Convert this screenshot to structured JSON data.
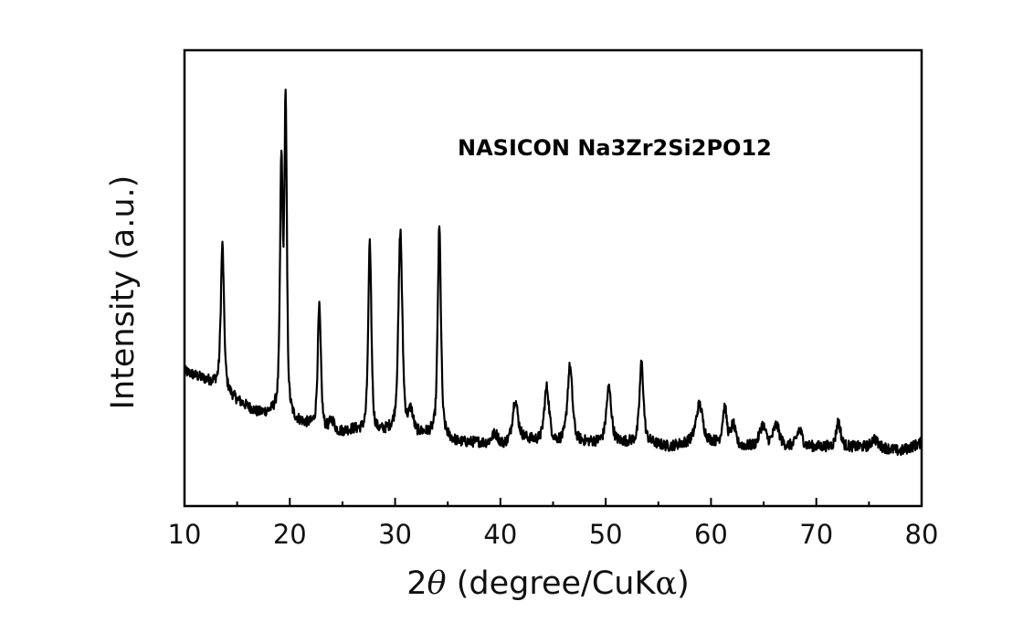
{
  "chart_data": {
    "type": "line",
    "title": "NASICON Na3Zr2Si2PO12",
    "xlabel": "2θ (degree/CuKα)",
    "xlabel_parts": {
      "prefix": "2",
      "theta": "θ",
      "middle": " (degree/CuK",
      "alpha": "α",
      "suffix": ")"
    },
    "ylabel": "Intensity (a.u.)",
    "xlim": [
      10,
      80
    ],
    "x_ticks": [
      10,
      20,
      30,
      40,
      50,
      60,
      70,
      80
    ],
    "x_tick_labels": [
      "10",
      "20",
      "30",
      "40",
      "50",
      "60",
      "70",
      "80"
    ],
    "x_minor_ticks": [
      15,
      25,
      35,
      45,
      55,
      65,
      75
    ],
    "y_ticks": [],
    "ylim_relative": [
      0,
      100
    ],
    "grid": false,
    "legend": null,
    "line_color": "#000000",
    "series": [
      {
        "name": "NASICON Na3Zr2Si2PO12",
        "baseline": [
          [
            10,
            29
          ],
          [
            12,
            27
          ],
          [
            13,
            26
          ],
          [
            15,
            22
          ],
          [
            17,
            19
          ],
          [
            18.8,
            19
          ],
          [
            20.5,
            17
          ],
          [
            22,
            16
          ],
          [
            24,
            14
          ],
          [
            26,
            15
          ],
          [
            28,
            14
          ],
          [
            30,
            15
          ],
          [
            32,
            14
          ],
          [
            34,
            14
          ],
          [
            36,
            12
          ],
          [
            38,
            12
          ],
          [
            40,
            11
          ],
          [
            42,
            13
          ],
          [
            44,
            12
          ],
          [
            46,
            12
          ],
          [
            48,
            12
          ],
          [
            50,
            12
          ],
          [
            52,
            12
          ],
          [
            54,
            12
          ],
          [
            56,
            11
          ],
          [
            58,
            12
          ],
          [
            60,
            12
          ],
          [
            62,
            11
          ],
          [
            64,
            11
          ],
          [
            66,
            11
          ],
          [
            68,
            11
          ],
          [
            70,
            11
          ],
          [
            72,
            11
          ],
          [
            74,
            11
          ],
          [
            76,
            11
          ],
          [
            78,
            10
          ],
          [
            80,
            12
          ]
        ],
        "peaks": [
          {
            "two_theta": 13.6,
            "intensity": 59,
            "width": 0.18
          },
          {
            "two_theta": 19.2,
            "intensity": 77,
            "width": 0.15
          },
          {
            "two_theta": 19.6,
            "intensity": 92,
            "width": 0.14
          },
          {
            "two_theta": 22.8,
            "intensity": 44,
            "width": 0.18
          },
          {
            "two_theta": 24.0,
            "intensity": 17,
            "width": 0.3
          },
          {
            "two_theta": 27.6,
            "intensity": 59,
            "width": 0.18
          },
          {
            "two_theta": 30.5,
            "intensity": 62,
            "width": 0.22
          },
          {
            "two_theta": 31.5,
            "intensity": 19,
            "width": 0.25
          },
          {
            "two_theta": 34.2,
            "intensity": 63,
            "width": 0.18
          },
          {
            "two_theta": 39.5,
            "intensity": 14,
            "width": 0.4
          },
          {
            "two_theta": 41.4,
            "intensity": 22,
            "width": 0.3
          },
          {
            "two_theta": 44.4,
            "intensity": 25,
            "width": 0.28
          },
          {
            "two_theta": 46.6,
            "intensity": 30,
            "width": 0.28
          },
          {
            "two_theta": 50.3,
            "intensity": 25,
            "width": 0.28
          },
          {
            "two_theta": 53.4,
            "intensity": 31,
            "width": 0.22
          },
          {
            "two_theta": 58.9,
            "intensity": 21,
            "width": 0.38
          },
          {
            "two_theta": 61.3,
            "intensity": 20,
            "width": 0.25
          },
          {
            "two_theta": 62.1,
            "intensity": 16,
            "width": 0.25
          },
          {
            "two_theta": 64.9,
            "intensity": 16,
            "width": 0.35
          },
          {
            "two_theta": 66.2,
            "intensity": 16,
            "width": 0.35
          },
          {
            "two_theta": 68.4,
            "intensity": 15,
            "width": 0.3
          },
          {
            "two_theta": 72.1,
            "intensity": 17,
            "width": 0.25
          },
          {
            "two_theta": 75.5,
            "intensity": 13,
            "width": 0.3
          }
        ]
      }
    ]
  }
}
